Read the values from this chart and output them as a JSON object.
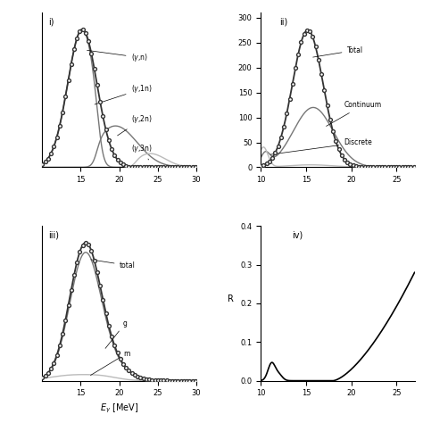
{
  "panel_labels": [
    "i)",
    "ii)",
    "iii)",
    "iv)"
  ],
  "xlabel": "E_γ [MeV]",
  "ylabel_iv": "R",
  "bg_color": "#ffffff",
  "gray_dark": "#333333",
  "gray_med": "#777777",
  "gray_light": "#bbbbbb"
}
